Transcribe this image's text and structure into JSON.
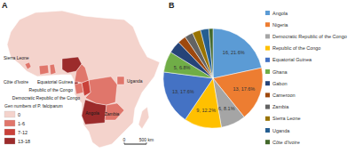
{
  "chart_data": [
    {
      "type": "map",
      "panel": "A",
      "legend_title": "Gen numbers of P. falciparum",
      "classes": [
        {
          "label": "0",
          "min": 0,
          "max": 0,
          "color": "#f4d3cc"
        },
        {
          "label": "1-6",
          "min": 1,
          "max": 6,
          "color": "#e0766b"
        },
        {
          "label": "7-12",
          "min": 7,
          "max": 12,
          "color": "#c9413a"
        },
        {
          "label": "13-18",
          "min": 13,
          "max": 18,
          "color": "#9c2b2b"
        }
      ],
      "regions": [
        {
          "name": "Angola",
          "value": 16,
          "show_label": true
        },
        {
          "name": "Nigeria",
          "value": 13,
          "show_label": false
        },
        {
          "name": "Democratic Republic of the Congo",
          "value": 6,
          "show_label": true
        },
        {
          "name": "Republic of the Congo",
          "value": 9,
          "show_label": true
        },
        {
          "name": "Equatorial Guinea",
          "value": 13,
          "show_label": true
        },
        {
          "name": "Ghana",
          "value": 5,
          "show_label": false
        },
        {
          "name": "Gabon",
          "value": 3,
          "show_label": false
        },
        {
          "name": "Cameroon",
          "value": 2,
          "show_label": false
        },
        {
          "name": "Zambia",
          "value": 2,
          "show_label": true
        },
        {
          "name": "Sierra Leone",
          "value": 2,
          "show_label": true
        },
        {
          "name": "Uganda",
          "value": 2,
          "show_label": true
        },
        {
          "name": "Côte d'Ivoire",
          "value": 1,
          "show_label": true
        }
      ],
      "scale_bar": [
        {
          "value": 0,
          "label": "0"
        },
        {
          "value": 500,
          "label": "500 km"
        }
      ]
    },
    {
      "type": "pie",
      "panel": "B",
      "categories": [
        "Angola",
        "Nigeria",
        "Democratic Republic of the Congo",
        "Republic of the Congo",
        "Equatorial Guinea",
        "Ghana",
        "Gabon",
        "Cameroon",
        "Zambia",
        "Sierra Leone",
        "Uganda",
        "Côte d'Ivoire"
      ],
      "values": [
        16,
        13,
        6,
        9,
        13,
        5,
        3,
        2,
        2,
        2,
        2,
        1
      ],
      "colors": [
        "#5b9bd5",
        "#ed7d31",
        "#a5a5a5",
        "#ffc000",
        "#4472c4",
        "#70ad47",
        "#264478",
        "#9e480e",
        "#636363",
        "#997300",
        "#255e91",
        "#43682b"
      ],
      "data_labels": true,
      "value_labels": [
        "16, 21.6%",
        "13, 17.6%",
        "6, 8.1%",
        "9, 12.2%",
        "13, 17.6%",
        "5, 6.8%",
        null,
        null,
        null,
        null,
        null,
        null
      ],
      "legend": "right"
    }
  ]
}
